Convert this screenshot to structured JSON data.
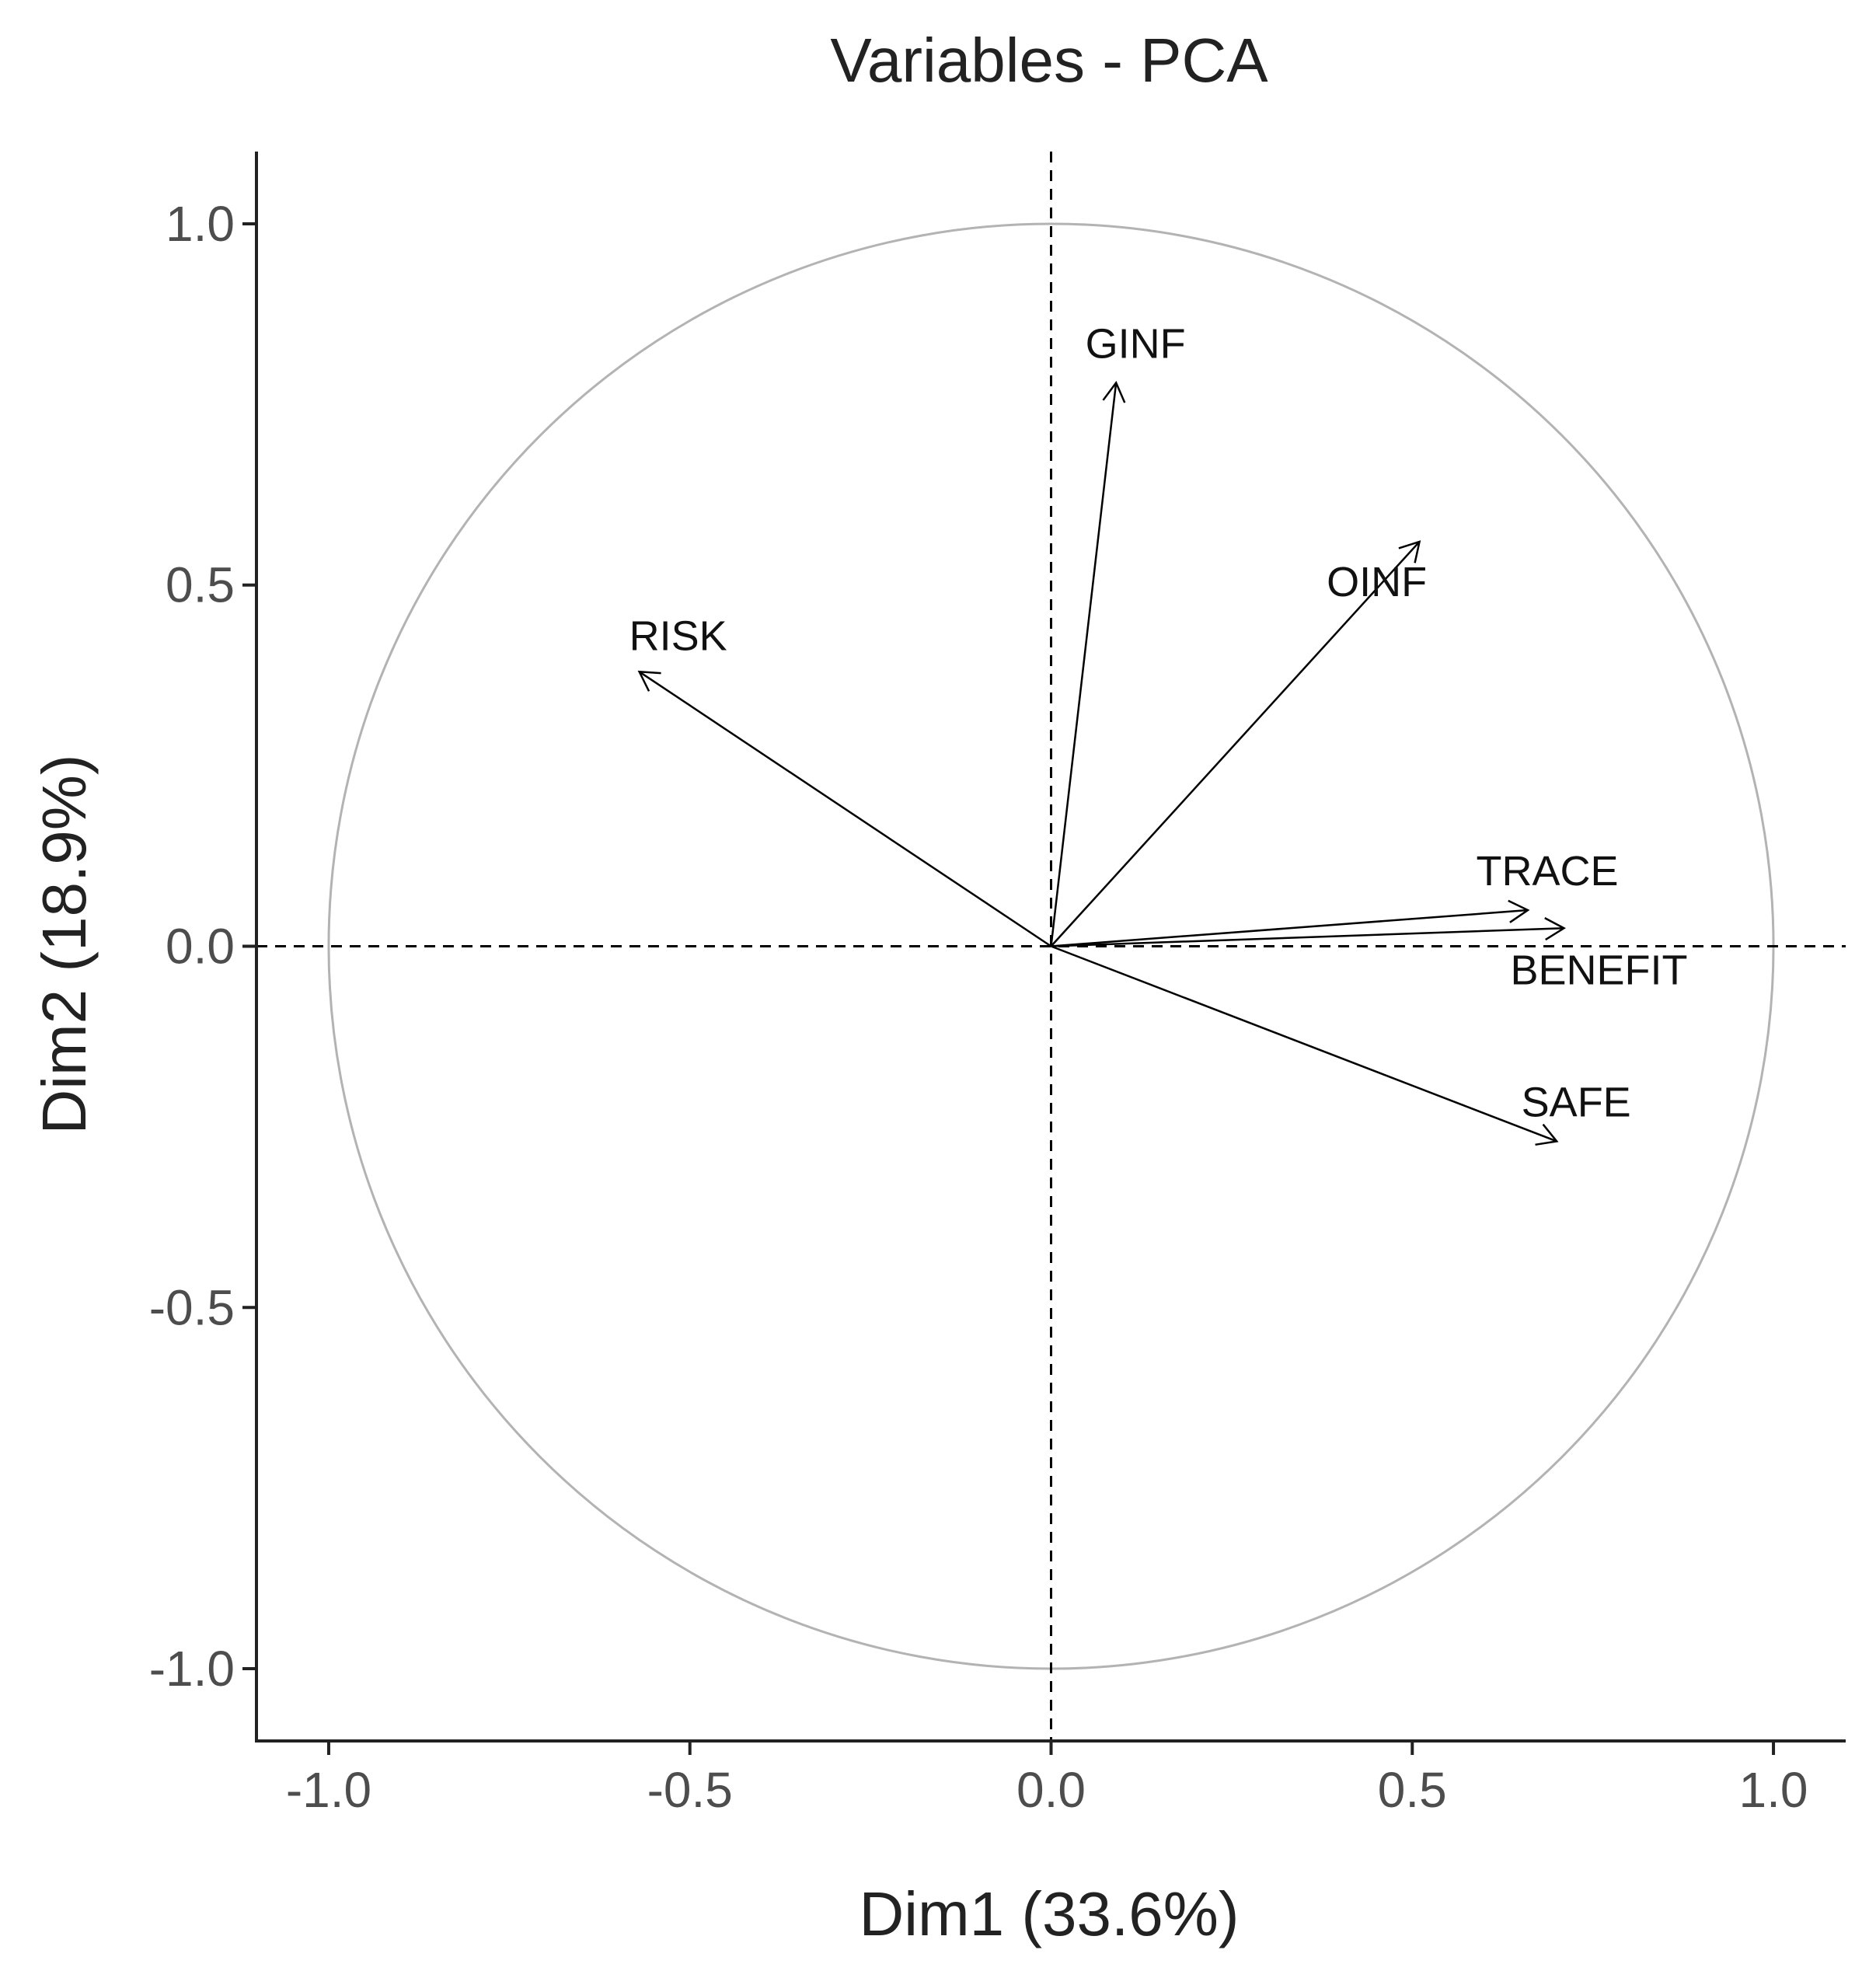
{
  "chart_data": {
    "type": "scatter",
    "subtype": "pca-variable-correlation-circle",
    "title": "Variables - PCA",
    "xlabel": "Dim1 (33.6%)",
    "ylabel": "Dim2 (18.9%)",
    "xlim": [
      -1.1,
      1.1
    ],
    "ylim": [
      -1.1,
      1.1
    ],
    "x_ticks": [
      -1.0,
      -0.5,
      0.0,
      0.5,
      1.0
    ],
    "x_tick_labels": [
      "-1.0",
      "-0.5",
      "0.0",
      "0.5",
      "1.0"
    ],
    "y_ticks": [
      -1.0,
      -0.5,
      0.0,
      0.5,
      1.0
    ],
    "y_tick_labels": [
      "-1.0",
      "-0.5",
      "0.0",
      "0.5",
      "1.0"
    ],
    "grid": false,
    "unit_circle_radius": 1.0,
    "reference_lines": {
      "x": 0,
      "y": 0,
      "style": "dashed"
    },
    "variables": [
      {
        "name": "GINF",
        "x": 0.09,
        "y": 0.78,
        "label_anchor": "above"
      },
      {
        "name": "OINF",
        "x": 0.51,
        "y": 0.56,
        "label_anchor": "below-left"
      },
      {
        "name": "RISK",
        "x": -0.57,
        "y": 0.38,
        "label_anchor": "above-right"
      },
      {
        "name": "TRACE",
        "x": 0.66,
        "y": 0.05,
        "label_anchor": "above"
      },
      {
        "name": "BENEFIT",
        "x": 0.71,
        "y": 0.025,
        "label_anchor": "below"
      },
      {
        "name": "SAFE",
        "x": 0.7,
        "y": -0.27,
        "label_anchor": "above"
      }
    ]
  }
}
